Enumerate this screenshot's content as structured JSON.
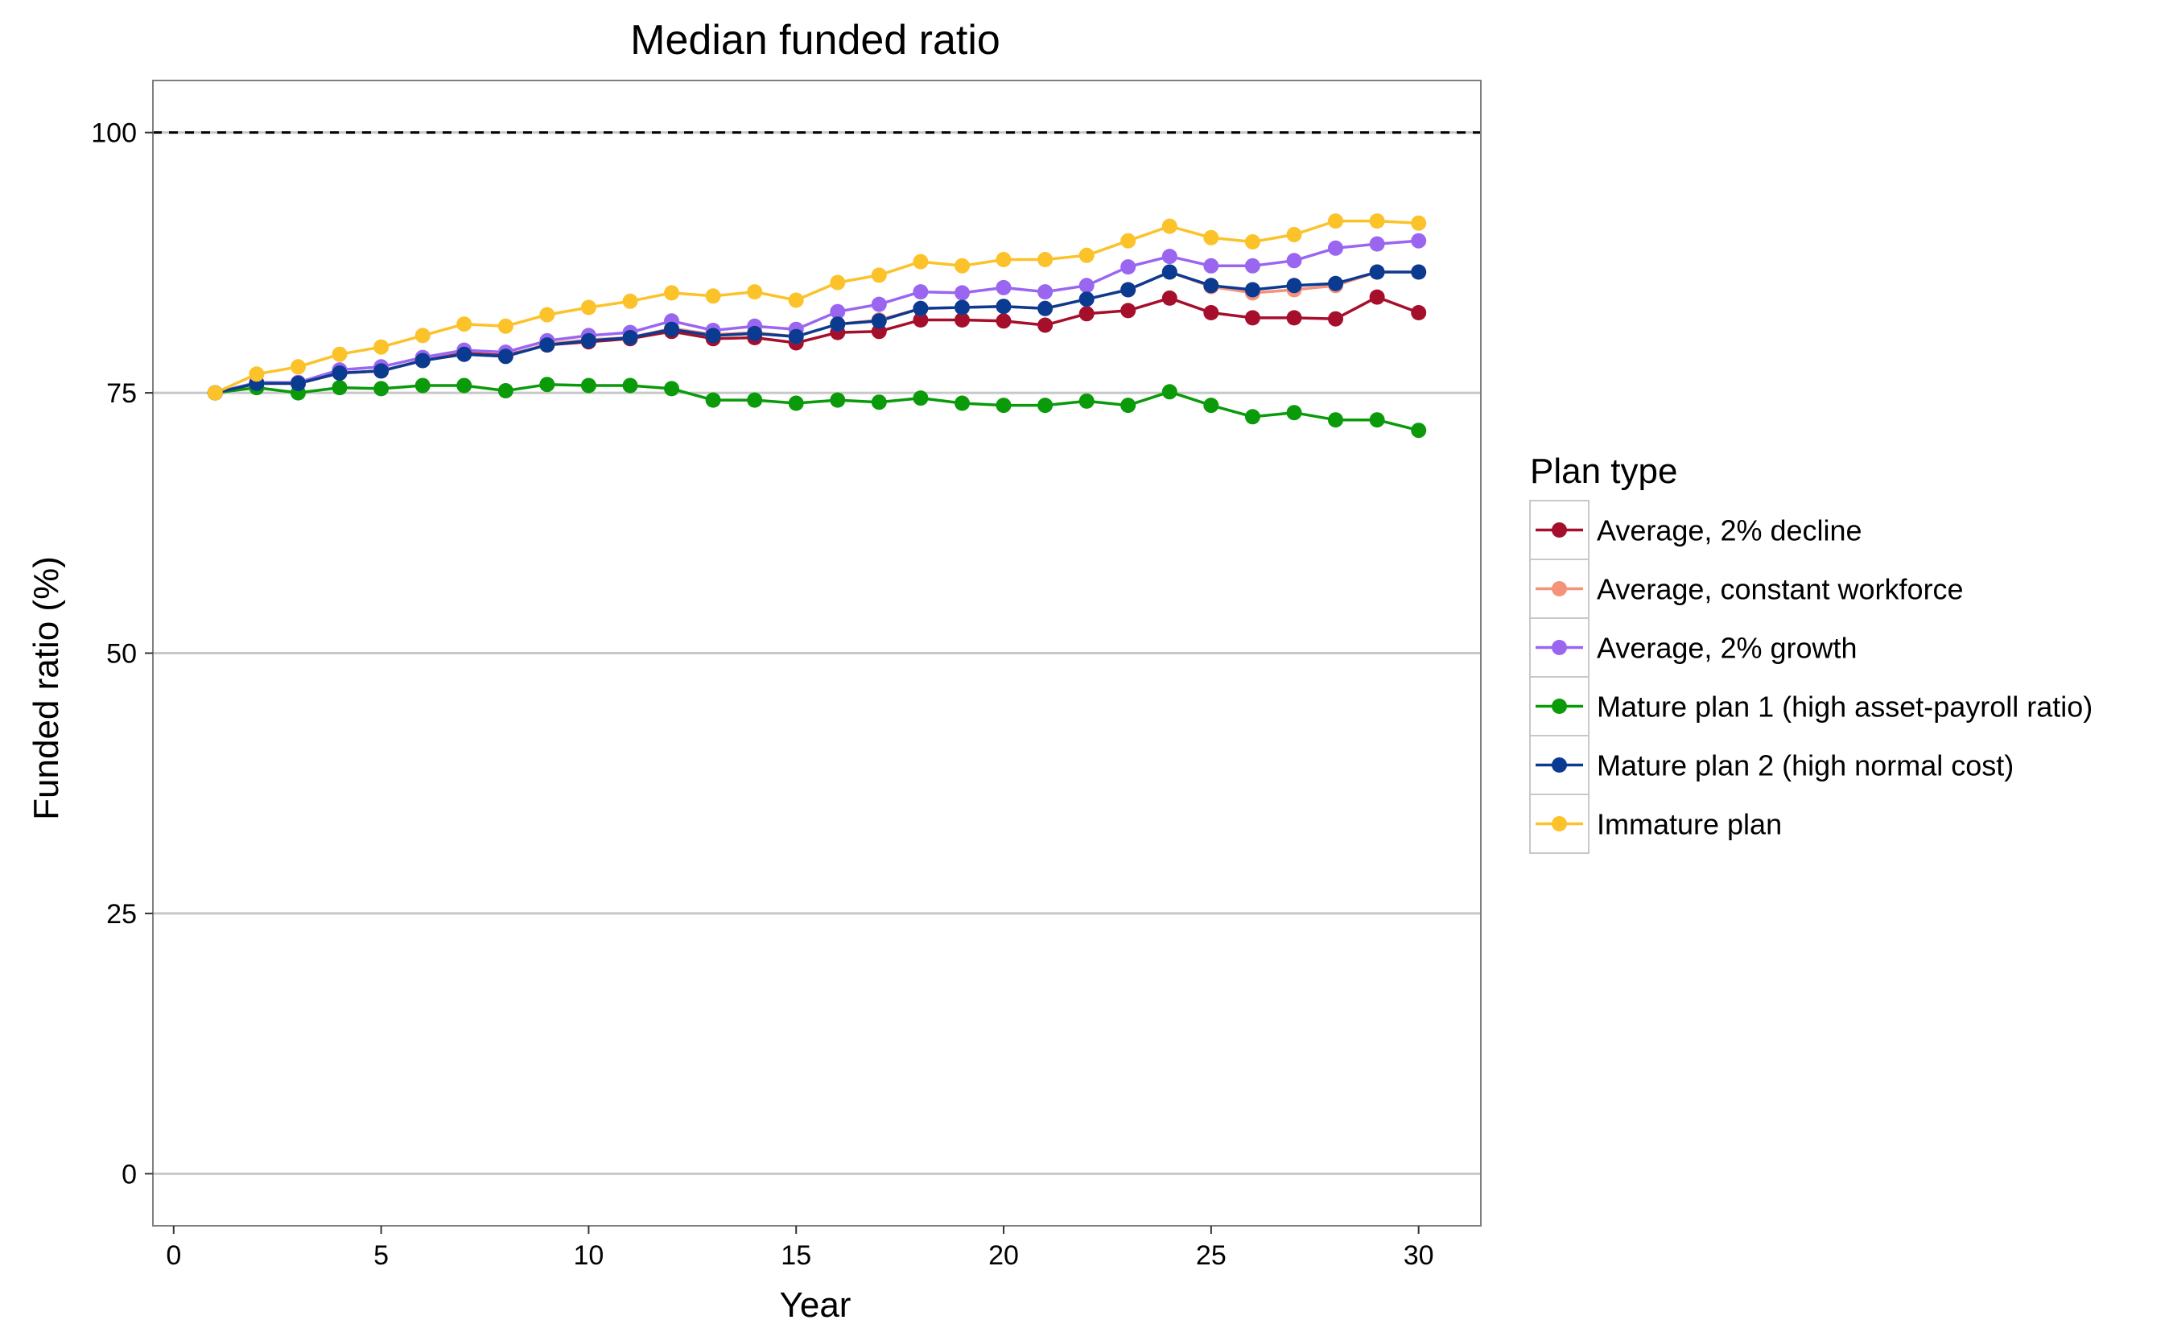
{
  "chart_data": {
    "type": "line",
    "title": "Median funded ratio",
    "xlabel": "Year",
    "ylabel": "Funded ratio (%)",
    "xlim": [
      -0.5,
      31.5
    ],
    "ylim": [
      -5,
      105
    ],
    "x_ticks": [
      0,
      5,
      10,
      15,
      20,
      25,
      30
    ],
    "y_ticks": [
      0,
      25,
      50,
      75,
      100
    ],
    "x_tick_labels": [
      "0",
      "5",
      "10",
      "15",
      "20",
      "25",
      "30"
    ],
    "y_tick_labels": [
      "0",
      "25",
      "50",
      "75",
      "100"
    ],
    "reference_line": {
      "y": 100,
      "style": "dashed"
    },
    "grid": "horizontal",
    "legend": {
      "title": "Plan type",
      "position": "right"
    },
    "x": [
      1,
      2,
      3,
      4,
      5,
      6,
      7,
      8,
      9,
      10,
      11,
      12,
      13,
      14,
      15,
      16,
      17,
      18,
      19,
      20,
      21,
      22,
      23,
      24,
      25,
      26,
      27,
      28,
      29,
      30
    ],
    "series": [
      {
        "name": "Average, 2% decline",
        "color": "#a50f2b",
        "values": [
          75,
          75.9,
          75.9,
          76.9,
          77.1,
          78.1,
          78.8,
          78.6,
          79.6,
          79.9,
          80.2,
          80.9,
          80.2,
          80.3,
          79.8,
          80.8,
          80.9,
          82.0,
          82.0,
          81.9,
          81.5,
          82.6,
          82.9,
          84.1,
          82.7,
          82.2,
          82.2,
          82.1,
          84.2,
          82.7
        ]
      },
      {
        "name": "Average, constant workforce",
        "color": "#f4927a",
        "values": [
          75,
          75.9,
          75.9,
          76.9,
          77.1,
          78.1,
          78.7,
          78.5,
          79.7,
          80.1,
          80.3,
          81.2,
          80.6,
          80.8,
          80.4,
          81.6,
          82.0,
          83.1,
          83.2,
          83.3,
          83.1,
          84.0,
          84.9,
          86.6,
          85.2,
          84.6,
          84.9,
          85.3,
          86.6,
          86.6
        ]
      },
      {
        "name": "Average, 2% growth",
        "color": "#9a66f0",
        "values": [
          75,
          76.0,
          76.0,
          77.2,
          77.5,
          78.4,
          79.1,
          78.9,
          80.0,
          80.5,
          80.8,
          81.9,
          81.0,
          81.4,
          81.1,
          82.8,
          83.5,
          84.7,
          84.6,
          85.1,
          84.7,
          85.3,
          87.1,
          88.1,
          87.2,
          87.2,
          87.7,
          88.9,
          89.3,
          89.6
        ]
      },
      {
        "name": "Mature plan 1 (high asset-payroll ratio)",
        "color": "#0a9a0a",
        "values": [
          75,
          75.5,
          75.0,
          75.5,
          75.4,
          75.7,
          75.7,
          75.2,
          75.8,
          75.7,
          75.7,
          75.4,
          74.3,
          74.3,
          74.0,
          74.3,
          74.1,
          74.5,
          74.0,
          73.8,
          73.8,
          74.2,
          73.8,
          75.1,
          73.8,
          72.7,
          73.1,
          72.4,
          72.4,
          71.4
        ]
      },
      {
        "name": "Mature plan 2 (high normal cost)",
        "color": "#0b3a91",
        "values": [
          75,
          75.9,
          75.9,
          76.9,
          77.1,
          78.1,
          78.7,
          78.5,
          79.6,
          80.0,
          80.3,
          81.1,
          80.5,
          80.7,
          80.4,
          81.6,
          81.9,
          83.1,
          83.2,
          83.3,
          83.1,
          84.0,
          84.9,
          86.6,
          85.3,
          84.9,
          85.3,
          85.5,
          86.6,
          86.6
        ]
      },
      {
        "name": "Immature plan",
        "color": "#fcc22a",
        "values": [
          75,
          76.8,
          77.5,
          78.7,
          79.4,
          80.5,
          81.6,
          81.4,
          82.5,
          83.2,
          83.8,
          84.6,
          84.3,
          84.7,
          83.9,
          85.6,
          86.3,
          87.6,
          87.2,
          87.8,
          87.8,
          88.2,
          89.6,
          91.0,
          89.9,
          89.5,
          90.2,
          91.5,
          91.5,
          91.3
        ]
      }
    ]
  }
}
